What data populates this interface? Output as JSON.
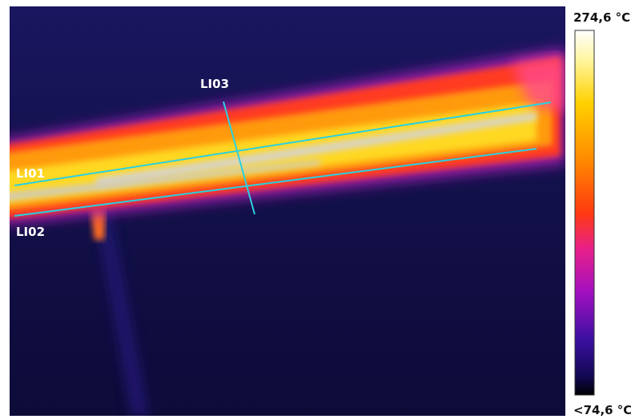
{
  "labels": {
    "line_1": "LI01",
    "line_2": "LI02",
    "line_3": "LI03"
  },
  "scale": {
    "max": "274,6 °C",
    "min": "<74,6 °C"
  }
}
